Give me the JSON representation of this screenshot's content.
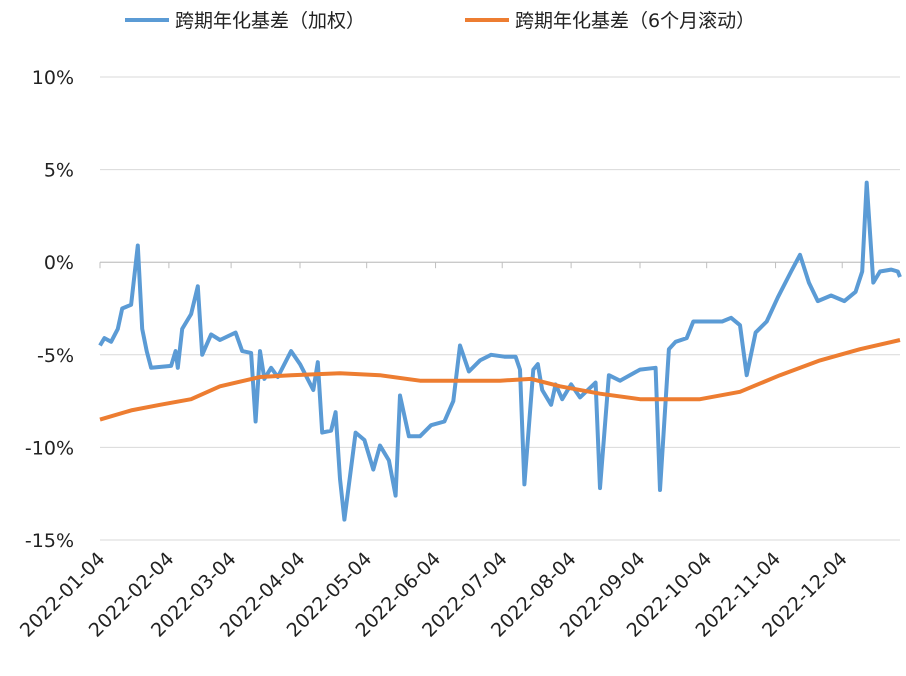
{
  "chart_data": {
    "type": "line",
    "series": [
      {
        "name": "跨期年化基差（加权）",
        "color": "#5b9bd5",
        "x": [
          "2022-01-04",
          "2022-01-06",
          "2022-01-09",
          "2022-01-12",
          "2022-01-14",
          "2022-01-18",
          "2022-01-21",
          "2022-01-23",
          "2022-01-25",
          "2022-01-27",
          "2022-02-05",
          "2022-02-07",
          "2022-02-08",
          "2022-02-10",
          "2022-02-14",
          "2022-02-17",
          "2022-02-19",
          "2022-02-23",
          "2022-02-27",
          "2022-03-06",
          "2022-03-09",
          "2022-03-13",
          "2022-03-15",
          "2022-03-17",
          "2022-03-19",
          "2022-03-22",
          "2022-03-25",
          "2022-03-31",
          "2022-04-04",
          "2022-04-10",
          "2022-04-12",
          "2022-04-14",
          "2022-04-18",
          "2022-04-20",
          "2022-04-22",
          "2022-04-24",
          "2022-04-27",
          "2022-04-29",
          "2022-05-03",
          "2022-05-07",
          "2022-05-10",
          "2022-05-14",
          "2022-05-17",
          "2022-05-19",
          "2022-05-23",
          "2022-05-28",
          "2022-06-02",
          "2022-06-08",
          "2022-06-12",
          "2022-06-15",
          "2022-06-19",
          "2022-06-24",
          "2022-06-29",
          "2022-07-05",
          "2022-07-10",
          "2022-07-12",
          "2022-07-14",
          "2022-07-18",
          "2022-07-20",
          "2022-07-22",
          "2022-07-26",
          "2022-07-28",
          "2022-07-31",
          "2022-08-04",
          "2022-08-08",
          "2022-08-15",
          "2022-08-17",
          "2022-08-21",
          "2022-08-26",
          "2022-09-04",
          "2022-09-11",
          "2022-09-13",
          "2022-09-17",
          "2022-09-20",
          "2022-09-25",
          "2022-09-28",
          "2022-10-05",
          "2022-10-11",
          "2022-10-15",
          "2022-10-19",
          "2022-10-22",
          "2022-10-26",
          "2022-10-31",
          "2022-11-05",
          "2022-11-11",
          "2022-11-15",
          "2022-11-19",
          "2022-11-23",
          "2022-11-29",
          "2022-12-05",
          "2022-12-10",
          "2022-12-13",
          "2022-12-15",
          "2022-12-18",
          "2022-12-21",
          "2022-12-26",
          "2022-12-29",
          "2022-12-30"
        ],
        "values": [
          -4.5,
          -4.1,
          -4.3,
          -3.6,
          -2.5,
          -2.3,
          0.9,
          -3.6,
          -4.8,
          -5.7,
          -5.6,
          -4.8,
          -5.7,
          -3.6,
          -2.8,
          -1.3,
          -5.0,
          -3.9,
          -4.2,
          -3.8,
          -4.8,
          -4.9,
          -8.6,
          -4.8,
          -6.3,
          -5.7,
          -6.2,
          -4.8,
          -5.5,
          -6.9,
          -5.4,
          -9.2,
          -9.1,
          -8.1,
          -11.7,
          -13.9,
          -11.1,
          -9.2,
          -9.6,
          -11.2,
          -9.9,
          -10.7,
          -12.6,
          -7.2,
          -9.4,
          -9.4,
          -8.8,
          -8.6,
          -7.5,
          -4.5,
          -5.9,
          -5.3,
          -5.0,
          -5.1,
          -5.1,
          -5.8,
          -12.0,
          -5.8,
          -5.5,
          -6.9,
          -7.7,
          -6.6,
          -7.4,
          -6.6,
          -7.3,
          -6.5,
          -12.2,
          -6.1,
          -6.4,
          -5.8,
          -5.7,
          -12.3,
          -4.7,
          -4.3,
          -4.1,
          -3.2,
          -3.2,
          -3.2,
          -3.0,
          -3.4,
          -6.1,
          -3.8,
          -3.2,
          -1.9,
          -0.5,
          0.4,
          -1.1,
          -2.1,
          -1.8,
          -2.1,
          -1.6,
          -0.5,
          4.3,
          -1.1,
          -0.5,
          -0.4,
          -0.5,
          -0.8
        ]
      },
      {
        "name": "跨期年化基差（6个月滚动）",
        "color": "#ed7d31",
        "x": [
          "2022-01-04",
          "2022-01-18",
          "2022-01-31",
          "2022-02-14",
          "2022-02-27",
          "2022-03-17",
          "2022-03-31",
          "2022-04-22",
          "2022-05-10",
          "2022-05-28",
          "2022-07-03",
          "2022-07-17",
          "2022-07-30",
          "2022-08-17",
          "2022-09-04",
          "2022-10-01",
          "2022-10-19",
          "2022-11-06",
          "2022-11-24",
          "2022-12-12",
          "2022-12-30"
        ],
        "values": [
          -8.5,
          -8.0,
          -7.7,
          -7.4,
          -6.7,
          -6.2,
          -6.1,
          -6.0,
          -6.1,
          -6.4,
          -6.4,
          -6.3,
          -6.7,
          -7.1,
          -7.4,
          -7.4,
          -7.0,
          -6.1,
          -5.3,
          -4.7,
          -4.2
        ]
      }
    ],
    "xlim": [
      "2022-01-04",
      "2022-12-30"
    ],
    "xticks": [
      "2022-01-04",
      "2022-02-04",
      "2022-03-04",
      "2022-04-04",
      "2022-05-04",
      "2022-06-04",
      "2022-07-04",
      "2022-08-04",
      "2022-09-04",
      "2022-10-04",
      "2022-11-04",
      "2022-12-04"
    ],
    "ylim": [
      -15,
      10
    ],
    "yticks": [
      {
        "value": 10,
        "label": "10%"
      },
      {
        "value": 5,
        "label": "5%"
      },
      {
        "value": 0,
        "label": "0%"
      },
      {
        "value": -5,
        "label": "-5%"
      },
      {
        "value": -10,
        "label": "-10%"
      },
      {
        "value": -15,
        "label": "-15%"
      }
    ],
    "grid": true,
    "legend": "top"
  }
}
